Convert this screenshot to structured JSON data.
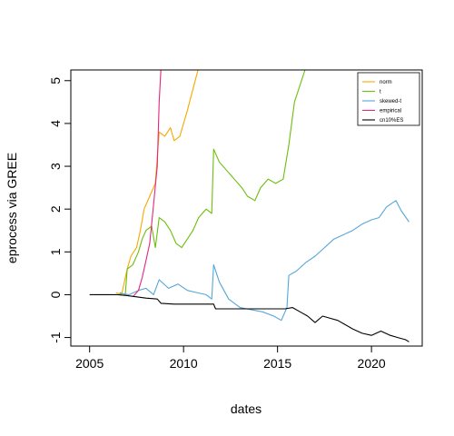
{
  "chart_data": {
    "type": "line",
    "xlabel": "dates",
    "ylabel": "eprocess via GREE",
    "xlim": [
      2004.0,
      2022.7
    ],
    "ylim": [
      -1.2,
      5.25
    ],
    "x_ticks": [
      2005,
      2010,
      2015,
      2020
    ],
    "x_tick_labels": [
      "2005",
      "2010",
      "2015",
      "2020"
    ],
    "y_ticks": [
      -1,
      0,
      1,
      2,
      3,
      4,
      5
    ],
    "y_tick_labels": [
      "-1",
      "0",
      "1",
      "2",
      "3",
      "4",
      "5"
    ],
    "grid": false,
    "legend_position": "top-right",
    "series": [
      {
        "name": "norm",
        "color": "#F5A800",
        "points": [
          [
            2006.4,
            0.05
          ],
          [
            2006.7,
            0.0
          ],
          [
            2007.0,
            0.6
          ],
          [
            2007.2,
            0.9
          ],
          [
            2007.5,
            1.1
          ],
          [
            2007.7,
            1.5
          ],
          [
            2007.9,
            2.0
          ],
          [
            2008.2,
            2.3
          ],
          [
            2008.5,
            2.6
          ],
          [
            2008.7,
            3.8
          ],
          [
            2009.0,
            3.7
          ],
          [
            2009.3,
            3.9
          ],
          [
            2009.5,
            3.6
          ],
          [
            2009.8,
            3.7
          ],
          [
            2010.2,
            4.3
          ],
          [
            2010.5,
            4.8
          ],
          [
            2010.8,
            5.3
          ],
          [
            2011.2,
            5.25
          ]
        ]
      },
      {
        "name": "t",
        "color": "#6BBE0C",
        "points": [
          [
            2006.6,
            0.05
          ],
          [
            2006.9,
            0.0
          ],
          [
            2007.0,
            0.6
          ],
          [
            2007.3,
            0.7
          ],
          [
            2007.6,
            1.0
          ],
          [
            2007.8,
            1.3
          ],
          [
            2008.0,
            1.5
          ],
          [
            2008.3,
            1.6
          ],
          [
            2008.5,
            1.1
          ],
          [
            2008.7,
            1.8
          ],
          [
            2009.0,
            1.7
          ],
          [
            2009.3,
            1.5
          ],
          [
            2009.6,
            1.2
          ],
          [
            2009.9,
            1.1
          ],
          [
            2010.2,
            1.3
          ],
          [
            2010.5,
            1.5
          ],
          [
            2010.8,
            1.8
          ],
          [
            2011.2,
            2.0
          ],
          [
            2011.5,
            1.9
          ],
          [
            2011.6,
            3.4
          ],
          [
            2011.9,
            3.1
          ],
          [
            2012.3,
            2.9
          ],
          [
            2012.7,
            2.7
          ],
          [
            2013.1,
            2.5
          ],
          [
            2013.4,
            2.3
          ],
          [
            2013.8,
            2.2
          ],
          [
            2014.1,
            2.5
          ],
          [
            2014.5,
            2.7
          ],
          [
            2014.9,
            2.6
          ],
          [
            2015.3,
            2.7
          ],
          [
            2015.6,
            3.5
          ],
          [
            2015.9,
            4.5
          ],
          [
            2016.2,
            4.9
          ],
          [
            2016.5,
            5.3
          ]
        ]
      },
      {
        "name": "skewed-t",
        "color": "#56A6D8",
        "points": [
          [
            2006.6,
            0.03
          ],
          [
            2007.1,
            0.0
          ],
          [
            2007.6,
            0.1
          ],
          [
            2008.0,
            0.15
          ],
          [
            2008.4,
            0.0
          ],
          [
            2008.7,
            0.35
          ],
          [
            2009.2,
            0.15
          ],
          [
            2009.7,
            0.25
          ],
          [
            2010.2,
            0.1
          ],
          [
            2010.7,
            0.05
          ],
          [
            2011.2,
            0.0
          ],
          [
            2011.5,
            -0.1
          ],
          [
            2011.6,
            0.7
          ],
          [
            2011.9,
            0.3
          ],
          [
            2012.4,
            -0.1
          ],
          [
            2013.0,
            -0.3
          ],
          [
            2013.6,
            -0.35
          ],
          [
            2014.2,
            -0.4
          ],
          [
            2014.8,
            -0.5
          ],
          [
            2015.2,
            -0.6
          ],
          [
            2015.5,
            -0.3
          ],
          [
            2015.6,
            0.45
          ],
          [
            2016.0,
            0.55
          ],
          [
            2016.5,
            0.75
          ],
          [
            2017.0,
            0.9
          ],
          [
            2017.5,
            1.1
          ],
          [
            2018.0,
            1.3
          ],
          [
            2018.5,
            1.4
          ],
          [
            2019.0,
            1.5
          ],
          [
            2019.5,
            1.65
          ],
          [
            2020.0,
            1.75
          ],
          [
            2020.4,
            1.8
          ],
          [
            2020.8,
            2.05
          ],
          [
            2021.3,
            2.2
          ],
          [
            2021.6,
            1.95
          ],
          [
            2022.0,
            1.7
          ]
        ]
      },
      {
        "name": "empirical",
        "color": "#E0287E",
        "points": [
          [
            2007.3,
            -0.05
          ],
          [
            2007.6,
            0.1
          ],
          [
            2007.8,
            0.4
          ],
          [
            2008.0,
            0.8
          ],
          [
            2008.2,
            1.2
          ],
          [
            2008.4,
            2.1
          ],
          [
            2008.6,
            3.0
          ],
          [
            2008.7,
            4.5
          ],
          [
            2008.8,
            5.3
          ]
        ]
      },
      {
        "name": "cn10%ES",
        "color": "#000000",
        "points": [
          [
            2005.0,
            0.0
          ],
          [
            2006.5,
            0.0
          ],
          [
            2007.0,
            -0.02
          ],
          [
            2007.5,
            -0.05
          ],
          [
            2008.0,
            -0.08
          ],
          [
            2008.6,
            -0.1
          ],
          [
            2008.8,
            -0.2
          ],
          [
            2009.5,
            -0.22
          ],
          [
            2011.0,
            -0.22
          ],
          [
            2011.6,
            -0.22
          ],
          [
            2011.7,
            -0.33
          ],
          [
            2013.0,
            -0.33
          ],
          [
            2015.4,
            -0.33
          ],
          [
            2015.8,
            -0.3
          ],
          [
            2016.2,
            -0.4
          ],
          [
            2016.6,
            -0.5
          ],
          [
            2017.0,
            -0.65
          ],
          [
            2017.4,
            -0.5
          ],
          [
            2017.8,
            -0.55
          ],
          [
            2018.2,
            -0.6
          ],
          [
            2018.6,
            -0.7
          ],
          [
            2019.0,
            -0.8
          ],
          [
            2019.5,
            -0.9
          ],
          [
            2020.0,
            -0.95
          ],
          [
            2020.5,
            -0.85
          ],
          [
            2021.0,
            -0.95
          ],
          [
            2021.4,
            -1.0
          ],
          [
            2021.8,
            -1.05
          ],
          [
            2022.0,
            -1.1
          ]
        ]
      }
    ]
  }
}
